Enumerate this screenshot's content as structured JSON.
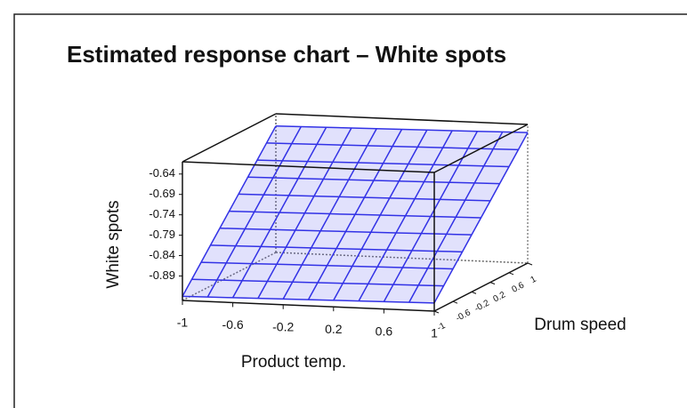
{
  "chart_data": {
    "type": "surface",
    "title": "Estimated response chart – White spots",
    "x_label": "Product temp.",
    "y_label": "Drum speed",
    "z_label": "White spots",
    "x": [
      -1,
      -0.8,
      -0.6,
      -0.4,
      -0.2,
      0,
      0.2,
      0.4,
      0.6,
      0.8,
      1
    ],
    "y": [
      -1,
      -0.8,
      -0.6,
      -0.4,
      -0.2,
      0,
      0.2,
      0.4,
      0.6,
      0.8,
      1
    ],
    "z": [
      [
        -0.94,
        -0.939,
        -0.938,
        -0.937,
        -0.936,
        -0.935,
        -0.934,
        -0.933,
        -0.932,
        -0.931,
        -0.93
      ],
      [
        -0.91,
        -0.909,
        -0.908,
        -0.907,
        -0.906,
        -0.905,
        -0.904,
        -0.903,
        -0.902,
        -0.901,
        -0.9
      ],
      [
        -0.88,
        -0.879,
        -0.878,
        -0.877,
        -0.876,
        -0.875,
        -0.874,
        -0.873,
        -0.872,
        -0.871,
        -0.87
      ],
      [
        -0.85,
        -0.849,
        -0.848,
        -0.847,
        -0.846,
        -0.845,
        -0.844,
        -0.843,
        -0.842,
        -0.841,
        -0.84
      ],
      [
        -0.82,
        -0.819,
        -0.818,
        -0.817,
        -0.816,
        -0.815,
        -0.814,
        -0.813,
        -0.812,
        -0.811,
        -0.81
      ],
      [
        -0.79,
        -0.789,
        -0.788,
        -0.787,
        -0.786,
        -0.785,
        -0.784,
        -0.783,
        -0.782,
        -0.781,
        -0.78
      ],
      [
        -0.76,
        -0.759,
        -0.758,
        -0.757,
        -0.756,
        -0.755,
        -0.754,
        -0.753,
        -0.752,
        -0.751,
        -0.75
      ],
      [
        -0.73,
        -0.729,
        -0.728,
        -0.727,
        -0.726,
        -0.725,
        -0.724,
        -0.723,
        -0.722,
        -0.721,
        -0.72
      ],
      [
        -0.7,
        -0.699,
        -0.698,
        -0.697,
        -0.696,
        -0.695,
        -0.694,
        -0.693,
        -0.692,
        -0.691,
        -0.69
      ],
      [
        -0.67,
        -0.669,
        -0.668,
        -0.667,
        -0.666,
        -0.665,
        -0.664,
        -0.663,
        -0.662,
        -0.661,
        -0.66
      ],
      [
        -0.64,
        -0.639,
        -0.638,
        -0.637,
        -0.636,
        -0.635,
        -0.634,
        -0.633,
        -0.632,
        -0.631,
        -0.63
      ]
    ],
    "xlim": [
      -1,
      1
    ],
    "ylim": [
      -1,
      1
    ],
    "zlim": [
      -0.95,
      -0.61
    ],
    "xticks": [
      -1,
      -0.6,
      -0.2,
      0.2,
      0.6,
      1
    ],
    "yticks": [
      -1,
      -0.6,
      -0.2,
      0.2,
      0.6,
      1
    ],
    "zticks": [
      -0.64,
      -0.69,
      -0.74,
      -0.79,
      -0.84,
      -0.89
    ],
    "color": "#3232e6"
  }
}
